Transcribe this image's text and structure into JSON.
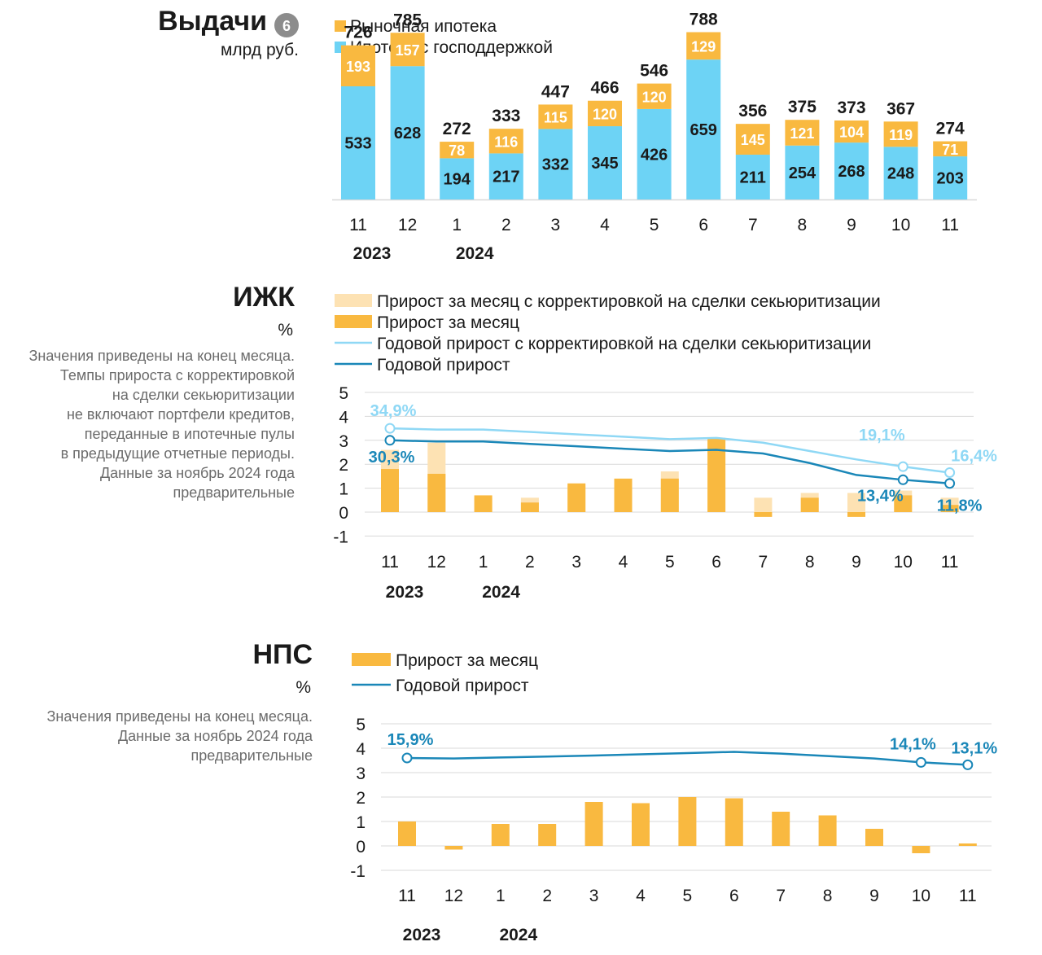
{
  "colors": {
    "market": "#f9b940",
    "gov": "#6dd3f5",
    "market_light": "#fde2b3",
    "annual": "#1a87b8",
    "annual_adj": "#8fd8f5",
    "axis_text": "#1a1a1a",
    "grid": "#d9d9d9",
    "note_text": "#6b6b6b",
    "badge": "#8c8c8c"
  },
  "chart_data": [
    {
      "id": "issuance",
      "type": "bar",
      "title": "Выдачи",
      "badge": "6",
      "subtitle": "млрд руб.",
      "categories": [
        "11",
        "12",
        "1",
        "2",
        "3",
        "4",
        "5",
        "6",
        "7",
        "8",
        "9",
        "10",
        "11"
      ],
      "years": [
        {
          "label": "2023",
          "at_index": 0
        },
        {
          "label": "2024",
          "at_index": 2
        }
      ],
      "stacked": true,
      "series": [
        {
          "name": "Ипотека с господдержкой",
          "color_key": "gov",
          "values": [
            533,
            628,
            194,
            217,
            332,
            345,
            426,
            659,
            211,
            254,
            268,
            248,
            203
          ]
        },
        {
          "name": "Рыночная ипотека",
          "color_key": "market",
          "values": [
            193,
            157,
            78,
            116,
            115,
            120,
            120,
            129,
            145,
            121,
            104,
            119,
            71
          ]
        }
      ],
      "totals": [
        726,
        785,
        272,
        333,
        447,
        466,
        546,
        788,
        356,
        375,
        373,
        367,
        274
      ],
      "legend_order": [
        "Рыночная ипотека",
        "Ипотека с господдержкой"
      ]
    },
    {
      "id": "izhk",
      "type": "bar",
      "title": "ИЖК",
      "subtitle": "%",
      "note": [
        "Значения приведены на конец месяца.",
        "Темпы прироста с корректировкой",
        "на сделки секьюритизации",
        "не включают портфели кредитов,",
        "переданные в ипотечные пулы",
        "в предыдущие отчетные периоды.",
        "Данные за ноябрь 2024 года",
        "предварительные"
      ],
      "categories": [
        "11",
        "12",
        "1",
        "2",
        "3",
        "4",
        "5",
        "6",
        "7",
        "8",
        "9",
        "10",
        "11"
      ],
      "years": [
        {
          "label": "2023",
          "at_index": 0
        },
        {
          "label": "2024",
          "at_index": 2
        }
      ],
      "y_ticks": [
        5,
        4,
        3,
        2,
        1,
        0,
        -1
      ],
      "ylim": [
        -1,
        5
      ],
      "series": [
        {
          "name": "Прирост за месяц с корректировкой на сделки секьюритизации",
          "kind": "bar",
          "color_key": "market_light",
          "values": [
            2.6,
            2.9,
            0.6,
            0.6,
            1.1,
            1.3,
            1.7,
            3.0,
            0.6,
            0.8,
            0.8,
            0.9,
            0.6
          ]
        },
        {
          "name": "Прирост за месяц",
          "kind": "bar",
          "color_key": "market",
          "values": [
            1.8,
            1.6,
            0.7,
            0.4,
            1.2,
            1.4,
            1.4,
            3.1,
            -0.2,
            0.6,
            -0.2,
            0.7,
            0.3
          ]
        },
        {
          "name": "Годовой прирост с корректировкой на сделки секьюритизации",
          "kind": "line",
          "color_key": "annual_adj",
          "values": [
            3.5,
            3.45,
            3.45,
            3.35,
            3.25,
            3.15,
            3.05,
            3.1,
            2.9,
            2.55,
            2.2,
            1.9,
            1.65
          ]
        },
        {
          "name": "Годовой прирост",
          "kind": "line",
          "color_key": "annual",
          "values": [
            3.0,
            2.95,
            2.95,
            2.85,
            2.75,
            2.65,
            2.55,
            2.6,
            2.45,
            2.05,
            1.55,
            1.35,
            1.2
          ]
        }
      ],
      "annotations": [
        {
          "series": 2,
          "index": 0,
          "text": "34,9%"
        },
        {
          "series": 3,
          "index": 0,
          "text": "30,3%"
        },
        {
          "series": 2,
          "index": 11,
          "text": "19,1%"
        },
        {
          "series": 2,
          "index": 12,
          "text": "16,4%"
        },
        {
          "series": 3,
          "index": 11,
          "text": "13,4%"
        },
        {
          "series": 3,
          "index": 12,
          "text": "11,8%"
        }
      ]
    },
    {
      "id": "nps",
      "type": "bar",
      "title": "НПС",
      "subtitle": "%",
      "note": [
        "Значения приведены на конец месяца.",
        "Данные за ноябрь 2024 года",
        "предварительные"
      ],
      "categories": [
        "11",
        "12",
        "1",
        "2",
        "3",
        "4",
        "5",
        "6",
        "7",
        "8",
        "9",
        "10",
        "11"
      ],
      "years": [
        {
          "label": "2023",
          "at_index": 0
        },
        {
          "label": "2024",
          "at_index": 2
        }
      ],
      "y_ticks": [
        5,
        4,
        3,
        2,
        1,
        0,
        -1
      ],
      "ylim": [
        -1,
        5
      ],
      "series": [
        {
          "name": "Прирост за месяц",
          "kind": "bar",
          "color_key": "market",
          "values": [
            1.0,
            -0.15,
            0.9,
            0.9,
            1.8,
            1.75,
            2.0,
            1.95,
            1.4,
            1.25,
            0.7,
            -0.3,
            0.1
          ]
        },
        {
          "name": "Годовой прирост",
          "kind": "line",
          "color_key": "annual",
          "values": [
            3.6,
            3.58,
            3.62,
            3.66,
            3.7,
            3.75,
            3.8,
            3.85,
            3.78,
            3.68,
            3.58,
            3.42,
            3.32
          ]
        }
      ],
      "annotations": [
        {
          "series": 1,
          "index": 0,
          "text": "15,9%"
        },
        {
          "series": 1,
          "index": 11,
          "text": "14,1%"
        },
        {
          "series": 1,
          "index": 12,
          "text": "13,1%"
        }
      ]
    }
  ]
}
